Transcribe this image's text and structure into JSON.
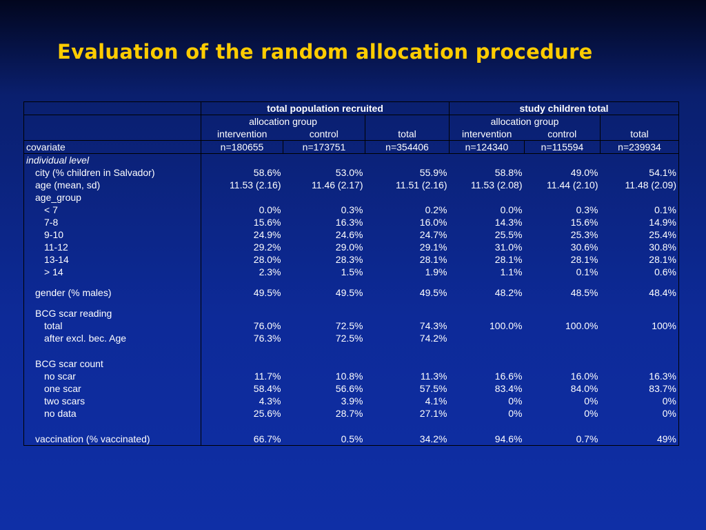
{
  "title": "Evaluation of the random allocation procedure",
  "table": {
    "groups": [
      "total population recruited",
      "study children total"
    ],
    "subgroups": [
      "allocation group",
      "allocation group"
    ],
    "columns": [
      "intervention",
      "control",
      "total",
      "intervention",
      "control",
      "total"
    ],
    "stub_header": "covariate",
    "counts": [
      "n=180655",
      "n=173751",
      "n=354406",
      "n=124340",
      "n=115594",
      "n=239934"
    ],
    "rows": [
      {
        "label": "individual level"
      },
      {
        "label": "city (% children in Salvador)",
        "values": [
          "58.6%",
          "53.0%",
          "55.9%",
          "58.8%",
          "49.0%",
          "54.1%"
        ]
      },
      {
        "label": "age (mean, sd)",
        "values": [
          "11.53 (2.16)",
          "11.46 (2.17)",
          "11.51 (2.16)",
          "11.53 (2.08)",
          "11.44 (2.10)",
          "11.48 (2.09)"
        ]
      },
      {
        "label": "age_group"
      },
      {
        "label": "< 7",
        "values": [
          "0.0%",
          "0.3%",
          "0.2%",
          "0.0%",
          "0.3%",
          "0.1%"
        ]
      },
      {
        "label": "7-8",
        "values": [
          "15.6%",
          "16.3%",
          "16.0%",
          "14.3%",
          "15.6%",
          "14.9%"
        ]
      },
      {
        "label": "9-10",
        "values": [
          "24.9%",
          "24.6%",
          "24.7%",
          "25.5%",
          "25.3%",
          "25.4%"
        ]
      },
      {
        "label": "11-12",
        "values": [
          "29.2%",
          "29.0%",
          "29.1%",
          "31.0%",
          "30.6%",
          "30.8%"
        ]
      },
      {
        "label": "13-14",
        "values": [
          "28.0%",
          "28.3%",
          "28.1%",
          "28.1%",
          "28.1%",
          "28.1%"
        ]
      },
      {
        "label": "> 14",
        "values": [
          "2.3%",
          "1.5%",
          "1.9%",
          "1.1%",
          "0.1%",
          "0.6%"
        ]
      },
      {
        "label": "gender (% males)",
        "values": [
          "49.5%",
          "49.5%",
          "49.5%",
          "48.2%",
          "48.5%",
          "48.4%"
        ]
      },
      {
        "label": "BCG scar reading"
      },
      {
        "label": "total",
        "values": [
          "76.0%",
          "72.5%",
          "74.3%",
          "100.0%",
          "100.0%",
          "100%"
        ]
      },
      {
        "label": "after excl. bec. Age",
        "values": [
          "76.3%",
          "72.5%",
          "74.2%",
          null,
          null,
          null
        ]
      },
      {
        "label": "BCG scar count"
      },
      {
        "label": "no scar",
        "values": [
          "11.7%",
          "10.8%",
          "11.3%",
          "16.6%",
          "16.0%",
          "16.3%"
        ]
      },
      {
        "label": "one scar",
        "values": [
          "58.4%",
          "56.6%",
          "57.5%",
          "83.4%",
          "84.0%",
          "83.7%"
        ]
      },
      {
        "label": "two scars",
        "values": [
          "4.3%",
          "3.9%",
          "4.1%",
          "0%",
          "0%",
          "0%"
        ]
      },
      {
        "label": "no data",
        "values": [
          "25.6%",
          "28.7%",
          "27.1%",
          "0%",
          "0%",
          "0%"
        ]
      },
      {
        "label": "vaccination (% vaccinated)",
        "values": [
          "66.7%",
          "0.5%",
          "34.2%",
          "94.6%",
          "0.7%",
          "49%"
        ]
      }
    ]
  }
}
